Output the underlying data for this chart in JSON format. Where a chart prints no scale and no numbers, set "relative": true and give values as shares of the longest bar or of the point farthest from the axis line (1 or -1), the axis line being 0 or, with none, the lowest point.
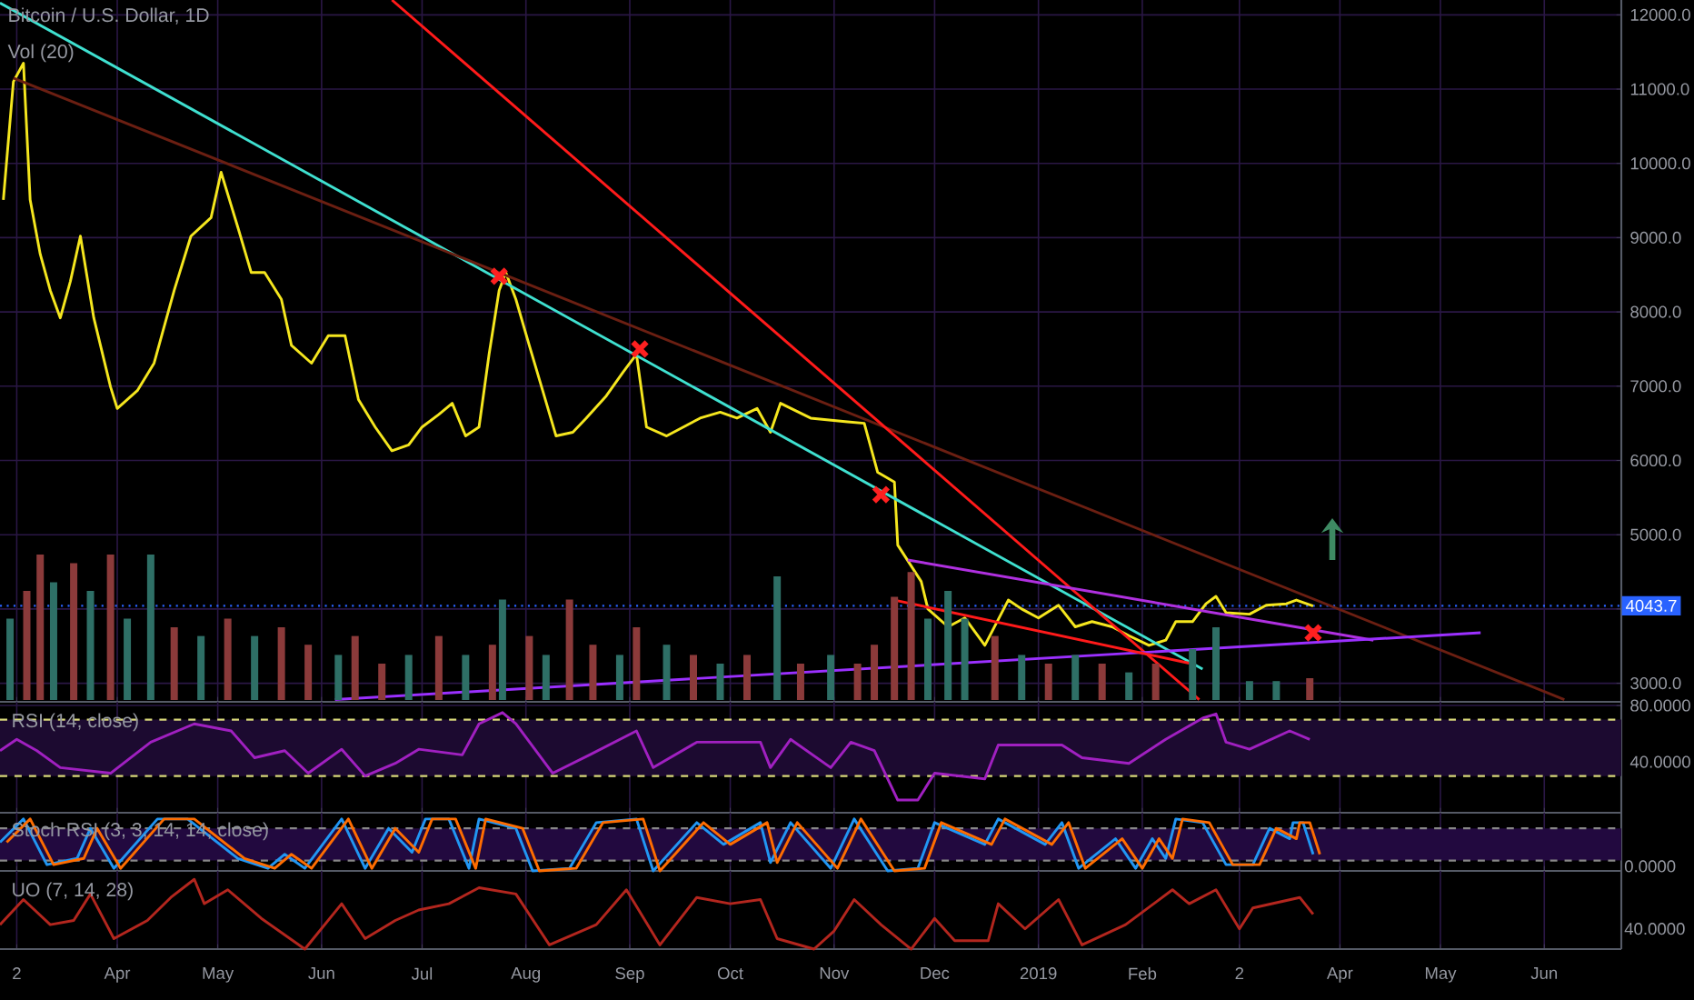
{
  "chart_data": [
    {
      "type": "line",
      "title": "Bitcoin / U.S. Dollar, 1D",
      "xlim": [
        "2018-02-25",
        "2019-06-24"
      ],
      "ylim": [
        2750,
        12200
      ],
      "grid": true,
      "tick_labels": "y",
      "xticks": [
        "2018-03-02",
        "2018-04-01",
        "2018-05-01",
        "2018-06-01",
        "2018-07-01",
        "2018-08-01",
        "2018-09-01",
        "2018-10-01",
        "2018-11-01",
        "2018-12-01",
        "2019-01-01",
        "2019-02-01",
        "2019-03-02",
        "2019-04-01",
        "2019-05-01",
        "2019-06-01"
      ],
      "yticks": [
        {
          "value": 3000,
          "label": "3000.0"
        },
        {
          "value": 4000,
          "label": null
        },
        {
          "value": 5000,
          "label": "5000.0"
        },
        {
          "value": 6000,
          "label": "6000.0"
        },
        {
          "value": 7000,
          "label": "7000.0"
        },
        {
          "value": 8000,
          "label": "8000.0"
        },
        {
          "value": 9000,
          "label": "9000.0"
        },
        {
          "value": 10000,
          "label": "10000.0"
        },
        {
          "value": 11000,
          "label": "11000.0"
        },
        {
          "value": 12000,
          "label": "12000.0"
        }
      ],
      "ref_lines": [
        {
          "axis": "y",
          "value": 4043.7,
          "label": "4043.7",
          "color": "#2962ff",
          "line_style": "dotted"
        }
      ],
      "series": [
        {
          "color": "#f5e61e",
          "x": [
            "2018-02-26",
            "2018-03-01",
            "2018-03-04",
            "2018-03-06",
            "2018-03-09",
            "2018-03-12",
            "2018-03-15",
            "2018-03-18",
            "2018-03-21",
            "2018-03-25",
            "2018-03-30",
            "2018-04-01",
            "2018-04-07",
            "2018-04-12",
            "2018-04-18",
            "2018-04-23",
            "2018-04-29",
            "2018-05-02",
            "2018-05-07",
            "2018-05-11",
            "2018-05-15",
            "2018-05-20",
            "2018-05-23",
            "2018-05-29",
            "2018-06-03",
            "2018-06-08",
            "2018-06-12",
            "2018-06-17",
            "2018-06-22",
            "2018-06-27",
            "2018-07-01",
            "2018-07-06",
            "2018-07-10",
            "2018-07-14",
            "2018-07-18",
            "2018-07-21",
            "2018-07-24",
            "2018-07-26",
            "2018-07-29",
            "2018-08-02",
            "2018-08-06",
            "2018-08-10",
            "2018-08-15",
            "2018-08-19",
            "2018-08-25",
            "2018-08-30",
            "2018-09-03",
            "2018-09-06",
            "2018-09-12",
            "2018-09-17",
            "2018-09-22",
            "2018-09-28",
            "2018-10-03",
            "2018-10-09",
            "2018-10-13",
            "2018-10-16",
            "2018-10-25",
            "2018-11-05",
            "2018-11-10",
            "2018-11-14",
            "2018-11-19",
            "2018-11-20",
            "2018-11-27",
            "2018-11-29",
            "2018-12-05",
            "2018-12-10",
            "2018-12-16",
            "2018-12-23",
            "2018-12-27",
            "2019-01-01",
            "2019-01-07",
            "2019-01-12",
            "2019-01-17",
            "2019-01-23",
            "2019-01-28",
            "2019-02-03",
            "2019-02-08",
            "2019-02-11",
            "2019-02-16",
            "2019-02-20",
            "2019-02-23",
            "2019-02-26",
            "2019-03-05",
            "2019-03-10",
            "2019-03-16",
            "2019-03-19",
            "2019-03-24"
          ],
          "values": [
            9510,
            11100,
            11350,
            9510,
            8780,
            8290,
            7920,
            8410,
            9020,
            7920,
            6990,
            6700,
            6940,
            7310,
            8290,
            9020,
            9270,
            9880,
            9140,
            8530,
            8530,
            8170,
            7550,
            7310,
            7680,
            7680,
            6820,
            6450,
            6130,
            6210,
            6450,
            6620,
            6770,
            6330,
            6450,
            7430,
            8290,
            8530,
            8170,
            7550,
            6940,
            6330,
            6380,
            6570,
            6870,
            7190,
            7430,
            6450,
            6330,
            6450,
            6570,
            6650,
            6570,
            6700,
            6380,
            6770,
            6570,
            6520,
            6500,
            5840,
            5710,
            4860,
            4370,
            4000,
            3760,
            3880,
            3510,
            4120,
            4000,
            3880,
            4050,
            3760,
            3830,
            3760,
            3640,
            3510,
            3580,
            3830,
            3830,
            4070,
            4170,
            3950,
            3930,
            4050,
            4070,
            4120,
            4040
          ]
        },
        {
          "type": "line",
          "color": "#3fe0d0",
          "x": [
            "2018-02-25",
            "2019-02-19"
          ],
          "values": [
            12160,
            3190
          ]
        },
        {
          "type": "line",
          "color": "#6b1f12",
          "x": [
            "2018-03-01",
            "2019-06-07"
          ],
          "values": [
            11150,
            2780
          ]
        },
        {
          "type": "line",
          "color": "#ff1a1a",
          "x": [
            "2018-06-22",
            "2019-02-18"
          ],
          "values": [
            12200,
            2780
          ]
        },
        {
          "type": "line",
          "color": "#b030e0",
          "x": [
            "2018-11-23",
            "2019-04-11"
          ],
          "values": [
            4660,
            3580
          ]
        },
        {
          "type": "line",
          "color": "#9b30ff",
          "x": [
            "2018-06-05",
            "2019-05-13"
          ],
          "values": [
            2780,
            3680
          ]
        },
        {
          "type": "line",
          "color": "#ff1a1a",
          "x": [
            "2018-11-19",
            "2019-02-15"
          ],
          "values": [
            4120,
            3270
          ]
        },
        {
          "type": "scatter",
          "marker": "cross",
          "color": "#ff2020",
          "x": [
            "2018-07-24",
            "2018-09-04",
            "2018-11-15",
            "2019-03-24"
          ],
          "values": [
            8480,
            7500,
            5540,
            3680
          ]
        }
      ]
    },
    {
      "type": "bar",
      "title": "Vol (20)",
      "relative": true,
      "tick_labels": false,
      "xlim": [
        "2018-02-25",
        "2019-06-24"
      ],
      "x": [
        "2018-02-28",
        "2018-03-05",
        "2018-03-09",
        "2018-03-13",
        "2018-03-19",
        "2018-03-24",
        "2018-03-30",
        "2018-04-04",
        "2018-04-11",
        "2018-04-18",
        "2018-04-26",
        "2018-05-04",
        "2018-05-12",
        "2018-05-20",
        "2018-05-28",
        "2018-06-06",
        "2018-06-11",
        "2018-06-19",
        "2018-06-27",
        "2018-07-06",
        "2018-07-14",
        "2018-07-22",
        "2018-07-25",
        "2018-08-02",
        "2018-08-07",
        "2018-08-14",
        "2018-08-21",
        "2018-08-29",
        "2018-09-03",
        "2018-09-12",
        "2018-09-20",
        "2018-09-28",
        "2018-10-06",
        "2018-10-15",
        "2018-10-22",
        "2018-10-31",
        "2018-11-08",
        "2018-11-13",
        "2018-11-19",
        "2018-11-24",
        "2018-11-29",
        "2018-12-05",
        "2018-12-10",
        "2018-12-19",
        "2018-12-27",
        "2019-01-04",
        "2019-01-12",
        "2019-01-20",
        "2019-01-28",
        "2019-02-05",
        "2019-02-16",
        "2019-02-23",
        "2019-03-05",
        "2019-03-13",
        "2019-03-23"
      ],
      "values": [
        0.56,
        0.75,
        1,
        0.81,
        0.94,
        0.75,
        1,
        0.56,
        1,
        0.5,
        0.44,
        0.56,
        0.44,
        0.5,
        0.38,
        0.31,
        0.44,
        0.25,
        0.31,
        0.44,
        0.31,
        0.38,
        0.69,
        0.44,
        0.31,
        0.69,
        0.38,
        0.31,
        0.5,
        0.38,
        0.31,
        0.25,
        0.31,
        0.85,
        0.25,
        0.31,
        0.25,
        0.38,
        0.71,
        0.88,
        0.56,
        0.75,
        0.56,
        0.44,
        0.31,
        0.25,
        0.31,
        0.25,
        0.19,
        0.25,
        0.35,
        0.5,
        0.13,
        0.13,
        0.15
      ],
      "colors": [
        "#2e6f66",
        "#8b3a3a",
        "#8b3a3a",
        "#2e6f66",
        "#8b3a3a",
        "#2e6f66",
        "#8b3a3a",
        "#2e6f66",
        "#2e6f66",
        "#8b3a3a",
        "#2e6f66",
        "#8b3a3a",
        "#2e6f66",
        "#8b3a3a",
        "#8b3a3a",
        "#2e6f66",
        "#8b3a3a",
        "#8b3a3a",
        "#2e6f66",
        "#8b3a3a",
        "#2e6f66",
        "#8b3a3a",
        "#2e6f66",
        "#8b3a3a",
        "#2e6f66",
        "#8b3a3a",
        "#8b3a3a",
        "#2e6f66",
        "#8b3a3a",
        "#2e6f66",
        "#8b3a3a",
        "#2e6f66",
        "#8b3a3a",
        "#2e6f66",
        "#8b3a3a",
        "#2e6f66",
        "#8b3a3a",
        "#8b3a3a",
        "#8b3a3a",
        "#8b3a3a",
        "#2e6f66",
        "#2e6f66",
        "#2e6f66",
        "#8b3a3a",
        "#2e6f66",
        "#8b3a3a",
        "#2e6f66",
        "#8b3a3a",
        "#2e6f66",
        "#8b3a3a",
        "#2e6f66",
        "#2e6f66",
        "#2e6f66",
        "#2e6f66",
        "#8b3a3a"
      ]
    },
    {
      "type": "line",
      "title": "RSI (14, close)",
      "xlim": [
        "2018-02-25",
        "2019-06-24"
      ],
      "ylim": [
        4,
        82.6
      ],
      "grid": true,
      "tick_labels": "y",
      "xticks": [
        "2018-03-02",
        "2018-04-01",
        "2018-05-01",
        "2018-06-01",
        "2018-07-01",
        "2018-08-01",
        "2018-09-01",
        "2018-10-01",
        "2018-11-01",
        "2018-12-01",
        "2019-01-01",
        "2019-02-01",
        "2019-03-02",
        "2019-04-01",
        "2019-05-01",
        "2019-06-01"
      ],
      "yticks": [
        {
          "value": 40,
          "label": "40.0000"
        },
        {
          "value": 80,
          "label": "80.0000"
        }
      ],
      "bands": [
        {
          "axis": "y",
          "from": 30,
          "to": 70,
          "color": "#1c0a30"
        }
      ],
      "ref_lines": [
        {
          "axis": "y",
          "value": 70,
          "color": "#d8d87a",
          "line_style": "dashed"
        },
        {
          "axis": "y",
          "value": 30,
          "color": "#d8d87a",
          "line_style": "dashed"
        }
      ],
      "series": [
        {
          "color": "#a020c0",
          "x": [
            "2018-02-25",
            "2018-03-02",
            "2018-03-08",
            "2018-03-15",
            "2018-03-30",
            "2018-04-11",
            "2018-04-24",
            "2018-05-05",
            "2018-05-12",
            "2018-05-21",
            "2018-05-28",
            "2018-06-07",
            "2018-06-14",
            "2018-06-23",
            "2018-06-30",
            "2018-07-13",
            "2018-07-18",
            "2018-07-25",
            "2018-07-29",
            "2018-08-09",
            "2018-08-20",
            "2018-09-03",
            "2018-09-08",
            "2018-09-21",
            "2018-10-10",
            "2018-10-13",
            "2018-10-19",
            "2018-10-31",
            "2018-11-06",
            "2018-11-13",
            "2018-11-20",
            "2018-11-26",
            "2018-12-01",
            "2018-12-16",
            "2018-12-20",
            "2019-01-08",
            "2019-01-14",
            "2019-01-28",
            "2019-02-08",
            "2019-02-19",
            "2019-02-23",
            "2019-02-26",
            "2019-03-05",
            "2019-03-17",
            "2019-03-23"
          ],
          "values": [
            48,
            56,
            48,
            36,
            32,
            54,
            67,
            62,
            43,
            48,
            32,
            49,
            30,
            39,
            49,
            45,
            67,
            75,
            67,
            32,
            45,
            62,
            36,
            54,
            54,
            36,
            56,
            36,
            54,
            48,
            13,
            13,
            32,
            28,
            52,
            52,
            43,
            39,
            56,
            71,
            74,
            54,
            49,
            62,
            56
          ]
        }
      ]
    },
    {
      "type": "line",
      "title": "Stoch RSI (3, 3, 14, 14, close)",
      "xlim": [
        "2018-02-25",
        "2019-06-24"
      ],
      "relative": true,
      "grid": true,
      "tick_labels": "y",
      "annotations": [
        "0.0000"
      ],
      "xticks": [
        "2018-03-02",
        "2018-04-01",
        "2018-05-01",
        "2018-06-01",
        "2018-07-01",
        "2018-08-01",
        "2018-09-01",
        "2018-10-01",
        "2018-11-01",
        "2018-12-01",
        "2019-01-01",
        "2019-02-01",
        "2019-03-02",
        "2019-04-01",
        "2019-05-01",
        "2019-06-01"
      ],
      "bands": [
        {
          "axis": "y",
          "from": 0.2,
          "to": 0.82,
          "color": "#22093f"
        }
      ],
      "ref_lines": [
        {
          "axis": "y",
          "value": 0.82,
          "color": "#888888",
          "line_style": "dashed"
        },
        {
          "axis": "y",
          "value": 0.2,
          "color": "#888888",
          "line_style": "dashed"
        }
      ],
      "series": [
        {
          "color": "#2196f3",
          "x": [
            "2018-02-25",
            "2018-03-04",
            "2018-03-11",
            "2018-03-20",
            "2018-03-24",
            "2018-03-31",
            "2018-04-13",
            "2018-04-22",
            "2018-05-07",
            "2018-05-16",
            "2018-05-21",
            "2018-05-27",
            "2018-06-07",
            "2018-06-14",
            "2018-06-21",
            "2018-06-28",
            "2018-07-02",
            "2018-07-09",
            "2018-07-15",
            "2018-07-18",
            "2018-07-29",
            "2018-08-03",
            "2018-08-14",
            "2018-08-22",
            "2018-09-03",
            "2018-09-08",
            "2018-09-21",
            "2018-09-29",
            "2018-10-10",
            "2018-10-13",
            "2018-10-19",
            "2018-10-31",
            "2018-11-07",
            "2018-11-17",
            "2018-11-26",
            "2018-12-01",
            "2018-12-16",
            "2018-12-20",
            "2019-01-03",
            "2019-01-08",
            "2019-01-13",
            "2019-01-24",
            "2019-01-30",
            "2019-02-04",
            "2019-02-08",
            "2019-02-11",
            "2019-02-19",
            "2019-02-26",
            "2019-03-06",
            "2019-03-11",
            "2019-03-17",
            "2019-03-18",
            "2019-03-21",
            "2019-03-24"
          ],
          "values": [
            0.55,
            1,
            0.12,
            0.24,
            0.82,
            0.05,
            1,
            1,
            0.24,
            0.05,
            0.32,
            0.05,
            1,
            0.05,
            0.82,
            0.36,
            1,
            1,
            0.05,
            1,
            0.82,
            0,
            0.05,
            0.93,
            1,
            0,
            0.93,
            0.51,
            0.93,
            0.16,
            0.93,
            0.05,
            1,
            0,
            0.05,
            0.93,
            0.51,
            1,
            0.51,
            0.93,
            0.05,
            0.62,
            0.05,
            0.62,
            0.24,
            1,
            0.93,
            0.12,
            0.12,
            0.82,
            0.62,
            0.93,
            0.93,
            0.32
          ]
        },
        {
          "color": "#ff6d00",
          "x": [
            "2018-02-27",
            "2018-03-06",
            "2018-03-13",
            "2018-03-22",
            "2018-03-26",
            "2018-04-02",
            "2018-04-15",
            "2018-04-24",
            "2018-05-09",
            "2018-05-18",
            "2018-05-23",
            "2018-05-29",
            "2018-06-09",
            "2018-06-16",
            "2018-06-23",
            "2018-06-30",
            "2018-07-04",
            "2018-07-11",
            "2018-07-17",
            "2018-07-20",
            "2018-07-31",
            "2018-08-05",
            "2018-08-16",
            "2018-08-24",
            "2018-09-05",
            "2018-09-10",
            "2018-09-23",
            "2018-10-01",
            "2018-10-12",
            "2018-10-15",
            "2018-10-21",
            "2018-11-02",
            "2018-11-09",
            "2018-11-19",
            "2018-11-28",
            "2018-12-03",
            "2018-12-18",
            "2018-12-22",
            "2019-01-05",
            "2019-01-10",
            "2019-01-15",
            "2019-01-26",
            "2019-02-01",
            "2019-02-06",
            "2019-02-10",
            "2019-02-13",
            "2019-02-21",
            "2019-02-28",
            "2019-03-08",
            "2019-03-13",
            "2019-03-19",
            "2019-03-20",
            "2019-03-23",
            "2019-03-26"
          ],
          "values": [
            0.55,
            1,
            0.12,
            0.24,
            0.82,
            0.05,
            1,
            1,
            0.24,
            0.05,
            0.32,
            0.05,
            1,
            0.05,
            0.82,
            0.36,
            1,
            1,
            0.05,
            1,
            0.82,
            0,
            0.05,
            0.93,
            1,
            0,
            0.93,
            0.51,
            0.93,
            0.16,
            0.93,
            0.05,
            1,
            0,
            0.05,
            0.93,
            0.51,
            1,
            0.51,
            0.93,
            0.05,
            0.62,
            0.05,
            0.62,
            0.24,
            1,
            0.93,
            0.12,
            0.12,
            0.82,
            0.62,
            0.93,
            0.93,
            0.32
          ]
        }
      ]
    },
    {
      "type": "line",
      "title": "UO (7, 14, 28)",
      "xlim": [
        "2018-02-25",
        "2019-06-24"
      ],
      "relative": true,
      "grid": true,
      "annotations": [
        "40.0000"
      ],
      "xticks": [
        {
          "value": "2018-03-02",
          "label": "2"
        },
        {
          "value": "2018-04-01",
          "label": "Apr"
        },
        {
          "value": "2018-05-01",
          "label": "May"
        },
        {
          "value": "2018-06-01",
          "label": "Jun"
        },
        {
          "value": "2018-07-01",
          "label": "Jul"
        },
        {
          "value": "2018-08-01",
          "label": "Aug"
        },
        {
          "value": "2018-09-01",
          "label": "Sep"
        },
        {
          "value": "2018-10-01",
          "label": "Oct"
        },
        {
          "value": "2018-11-01",
          "label": "Nov"
        },
        {
          "value": "2018-12-01",
          "label": "Dec"
        },
        {
          "value": "2019-01-01",
          "label": "2019"
        },
        {
          "value": "2019-02-01",
          "label": "Feb"
        },
        {
          "value": "2019-03-02",
          "label": "2"
        },
        {
          "value": "2019-04-01",
          "label": "Apr"
        },
        {
          "value": "2019-05-01",
          "label": "May"
        },
        {
          "value": "2019-06-01",
          "label": "Jun"
        }
      ],
      "series": [
        {
          "color": "#b3261e",
          "x": [
            "2018-02-25",
            "2018-03-04",
            "2018-03-12",
            "2018-03-19",
            "2018-03-24",
            "2018-03-31",
            "2018-04-10",
            "2018-04-17",
            "2018-04-24",
            "2018-04-27",
            "2018-05-04",
            "2018-05-14",
            "2018-05-27",
            "2018-06-07",
            "2018-06-14",
            "2018-06-23",
            "2018-06-30",
            "2018-07-09",
            "2018-07-18",
            "2018-07-29",
            "2018-08-08",
            "2018-08-22",
            "2018-08-31",
            "2018-09-10",
            "2018-09-21",
            "2018-10-01",
            "2018-10-10",
            "2018-10-15",
            "2018-10-26",
            "2018-11-01",
            "2018-11-07",
            "2018-11-15",
            "2018-11-24",
            "2018-12-01",
            "2018-12-07",
            "2018-12-17",
            "2018-12-20",
            "2018-12-28",
            "2019-01-07",
            "2019-01-14",
            "2019-01-27",
            "2019-02-10",
            "2019-02-15",
            "2019-02-23",
            "2019-03-02",
            "2019-03-06",
            "2019-03-20",
            "2019-03-24"
          ],
          "values": [
            0.35,
            0.71,
            0.35,
            0.41,
            0.79,
            0.15,
            0.41,
            0.74,
            1,
            0.65,
            0.85,
            0.44,
            0,
            0.65,
            0.15,
            0.41,
            0.56,
            0.65,
            0.88,
            0.79,
            0.06,
            0.35,
            0.85,
            0.06,
            0.74,
            0.65,
            0.71,
            0.15,
            0,
            0.26,
            0.71,
            0.35,
            0,
            0.44,
            0.12,
            0.12,
            0.65,
            0.29,
            0.71,
            0.06,
            0.35,
            0.85,
            0.65,
            0.85,
            0.29,
            0.59,
            0.74,
            0.5
          ]
        }
      ]
    }
  ]
}
